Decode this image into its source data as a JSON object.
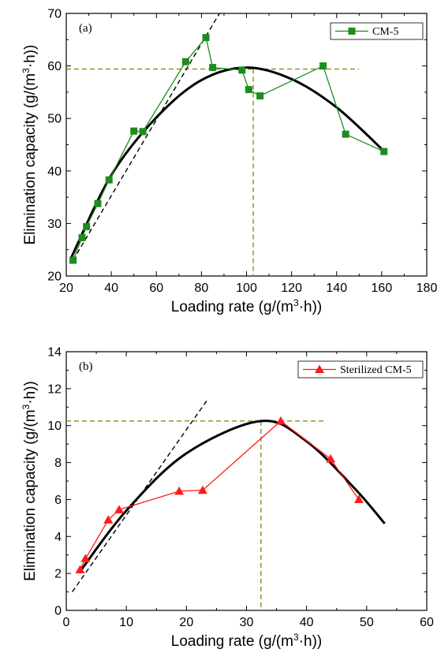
{
  "chart_data": [
    {
      "type": "scatter",
      "panel_label": "(a)",
      "xlabel": "Loading rate (g/(m³·h))",
      "ylabel": "Elimination capacity  (g/(m³·h))",
      "xlim": [
        20,
        180
      ],
      "ylim": [
        20,
        70
      ],
      "xticks": [
        20,
        40,
        60,
        80,
        100,
        120,
        140,
        160,
        180
      ],
      "yticks": [
        20,
        30,
        40,
        50,
        60,
        70
      ],
      "legend_position": "top-right",
      "series": [
        {
          "name": "CM-5",
          "color": "#1e8c1e",
          "marker": "square",
          "x": [
            23,
            27,
            29,
            34,
            39,
            50,
            54,
            73,
            82,
            85,
            98,
            101,
            106,
            134,
            144,
            161
          ],
          "y": [
            23,
            27.3,
            29.4,
            33.8,
            38.3,
            47.6,
            47.5,
            60.8,
            65.4,
            59.7,
            59.2,
            55.5,
            54.3,
            60.0,
            47.0,
            43.7
          ]
        }
      ],
      "fit_curve": {
        "color": "#000000",
        "x": [
          22,
          40,
          60,
          80,
          100,
          120,
          140,
          161
        ],
        "y": [
          23.3,
          39.2,
          50.2,
          57.3,
          59.7,
          57.5,
          52.1,
          43.8
        ]
      },
      "tangent_line": {
        "color": "#000000",
        "style": "dashed",
        "x": [
          23,
          88
        ],
        "y": [
          23,
          70
        ]
      },
      "reference_lines": {
        "color": "#8a8a1e",
        "style": "dashed",
        "h_y": 59.4,
        "v_x": 103
      }
    },
    {
      "type": "scatter",
      "panel_label": "(b)",
      "xlabel": "Loading rate  (g/(m³·h))",
      "ylabel": "Elimination capacity  (g/(m³·h))",
      "xlim": [
        0,
        60
      ],
      "ylim": [
        0,
        14
      ],
      "xticks": [
        0,
        10,
        20,
        30,
        40,
        50,
        60
      ],
      "yticks": [
        0,
        2,
        4,
        6,
        8,
        10,
        12,
        14
      ],
      "legend_position": "top-right",
      "series": [
        {
          "name": "Sterilized CM-5",
          "color": "#ff1a1a",
          "marker": "triangle",
          "x": [
            2.3,
            3.2,
            7.0,
            8.8,
            18.8,
            22.7,
            35.7,
            44.0,
            48.7
          ],
          "y": [
            2.2,
            2.8,
            4.9,
            5.45,
            6.45,
            6.5,
            10.25,
            8.2,
            6.0
          ]
        }
      ],
      "fit_curve": {
        "color": "#000000",
        "x": [
          2.5,
          10,
          20,
          32.4,
          40,
          48,
          53
        ],
        "y": [
          2.2,
          5.4,
          8.5,
          10.25,
          9.15,
          6.6,
          4.7
        ]
      },
      "tangent_line": {
        "color": "#000000",
        "style": "dashed",
        "x": [
          1.0,
          23.5
        ],
        "y": [
          1.0,
          11.4
        ]
      },
      "reference_lines": {
        "color": "#8a8a1e",
        "style": "dashed",
        "h_y": 10.25,
        "v_x": 32.4
      }
    }
  ]
}
